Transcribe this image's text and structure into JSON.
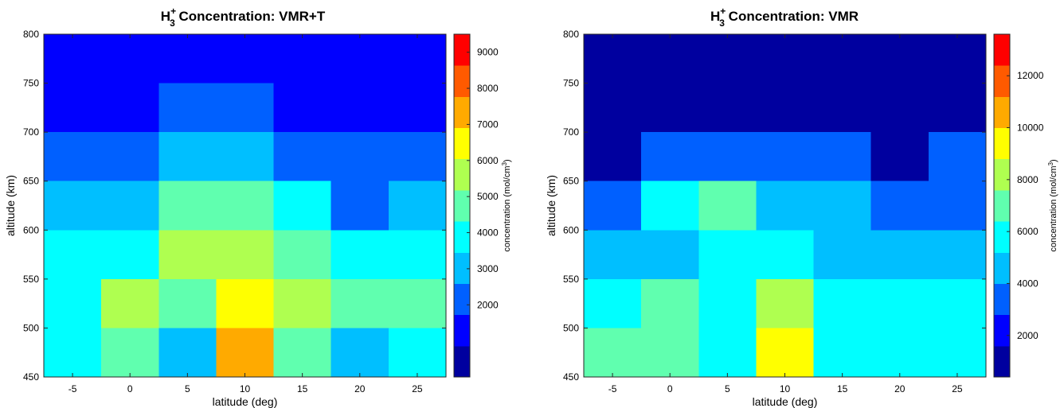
{
  "palette": [
    "#00009f",
    "#0000ff",
    "#0060ff",
    "#00bfff",
    "#00ffff",
    "#60ffaf",
    "#afff50",
    "#ffff00",
    "#ffaa00",
    "#ff5a00",
    "#ff0000"
  ],
  "chart_data": [
    {
      "type": "heatmap",
      "title_main": "H",
      "title_sup": "+",
      "title_sub": "3",
      "title_rest": " Concentration: VMR+T",
      "xlabel": "latitude (deg)",
      "ylabel": "altitude (km)",
      "colorbar_label": "concentration (mol/cm",
      "colorbar_label_sup": "3",
      "colorbar_label_end": ")",
      "x": [
        -5,
        0,
        5,
        10,
        15,
        20,
        25
      ],
      "x_tick_labels": [
        "-5",
        "0",
        "5",
        "10",
        "15",
        "20",
        "25"
      ],
      "xlim": [
        -7.5,
        27.5
      ],
      "ylim": [
        450,
        800
      ],
      "y_ticks": [
        450,
        500,
        550,
        600,
        650,
        700,
        750,
        800
      ],
      "y_tick_labels": [
        "450",
        "500",
        "550",
        "600",
        "650",
        "700",
        "750",
        "800"
      ],
      "clim": [
        0,
        9500
      ],
      "colorbar_ticks": [
        2000,
        3000,
        4000,
        5000,
        6000,
        7000,
        8000,
        9000
      ],
      "colorbar_tick_labels": [
        "2000",
        "3000",
        "4000",
        "5000",
        "6000",
        "7000",
        "8000",
        "9000"
      ],
      "cells": [
        {
          "x": -5,
          "y0": 450,
          "y1": 600,
          "value": 4300
        },
        {
          "x": -5,
          "y0": 600,
          "y1": 650,
          "value": 3300
        },
        {
          "x": -5,
          "y0": 650,
          "y1": 700,
          "value": 2400
        },
        {
          "x": -5,
          "y0": 700,
          "y1": 800,
          "value": 1200
        },
        {
          "x": 0,
          "y0": 450,
          "y1": 500,
          "value": 5100
        },
        {
          "x": 0,
          "y0": 500,
          "y1": 550,
          "value": 5700
        },
        {
          "x": 0,
          "y0": 550,
          "y1": 600,
          "value": 4300
        },
        {
          "x": 0,
          "y0": 600,
          "y1": 650,
          "value": 3300
        },
        {
          "x": 0,
          "y0": 650,
          "y1": 700,
          "value": 2400
        },
        {
          "x": 0,
          "y0": 700,
          "y1": 800,
          "value": 1200
        },
        {
          "x": 5,
          "y0": 450,
          "y1": 500,
          "value": 3300
        },
        {
          "x": 5,
          "y0": 500,
          "y1": 550,
          "value": 5100
        },
        {
          "x": 5,
          "y0": 550,
          "y1": 600,
          "value": 5700
        },
        {
          "x": 5,
          "y0": 600,
          "y1": 650,
          "value": 5100
        },
        {
          "x": 5,
          "y0": 650,
          "y1": 700,
          "value": 3300
        },
        {
          "x": 5,
          "y0": 700,
          "y1": 750,
          "value": 2400
        },
        {
          "x": 5,
          "y0": 750,
          "y1": 800,
          "value": 1200
        },
        {
          "x": 10,
          "y0": 450,
          "y1": 500,
          "value": 7400
        },
        {
          "x": 10,
          "y0": 500,
          "y1": 550,
          "value": 6600
        },
        {
          "x": 10,
          "y0": 550,
          "y1": 600,
          "value": 5700
        },
        {
          "x": 10,
          "y0": 600,
          "y1": 650,
          "value": 5100
        },
        {
          "x": 10,
          "y0": 650,
          "y1": 700,
          "value": 3300
        },
        {
          "x": 10,
          "y0": 700,
          "y1": 750,
          "value": 2400
        },
        {
          "x": 10,
          "y0": 750,
          "y1": 800,
          "value": 1200
        },
        {
          "x": 15,
          "y0": 450,
          "y1": 500,
          "value": 5100
        },
        {
          "x": 15,
          "y0": 500,
          "y1": 550,
          "value": 5700
        },
        {
          "x": 15,
          "y0": 550,
          "y1": 600,
          "value": 5100
        },
        {
          "x": 15,
          "y0": 600,
          "y1": 650,
          "value": 4300
        },
        {
          "x": 15,
          "y0": 650,
          "y1": 700,
          "value": 2400
        },
        {
          "x": 15,
          "y0": 700,
          "y1": 800,
          "value": 1200
        },
        {
          "x": 20,
          "y0": 450,
          "y1": 500,
          "value": 3300
        },
        {
          "x": 20,
          "y0": 500,
          "y1": 550,
          "value": 5100
        },
        {
          "x": 20,
          "y0": 550,
          "y1": 600,
          "value": 4300
        },
        {
          "x": 20,
          "y0": 600,
          "y1": 700,
          "value": 2400
        },
        {
          "x": 20,
          "y0": 700,
          "y1": 800,
          "value": 1200
        },
        {
          "x": 25,
          "y0": 450,
          "y1": 500,
          "value": 4300
        },
        {
          "x": 25,
          "y0": 500,
          "y1": 550,
          "value": 5100
        },
        {
          "x": 25,
          "y0": 550,
          "y1": 600,
          "value": 4300
        },
        {
          "x": 25,
          "y0": 600,
          "y1": 650,
          "value": 3300
        },
        {
          "x": 25,
          "y0": 650,
          "y1": 700,
          "value": 2400
        },
        {
          "x": 25,
          "y0": 700,
          "y1": 800,
          "value": 1200
        }
      ]
    },
    {
      "type": "heatmap",
      "title_main": "H",
      "title_sup": "+",
      "title_sub": "3",
      "title_rest": " Concentration: VMR",
      "xlabel": "latitude (deg)",
      "ylabel": "altitude (km)",
      "colorbar_label": "concentration (mol/cm",
      "colorbar_label_sup": "3",
      "colorbar_label_end": ")",
      "x": [
        -5,
        0,
        5,
        10,
        15,
        20,
        25
      ],
      "x_tick_labels": [
        "-5",
        "0",
        "5",
        "10",
        "15",
        "20",
        "25"
      ],
      "xlim": [
        -7.5,
        27.5
      ],
      "ylim": [
        450,
        800
      ],
      "y_ticks": [
        450,
        500,
        550,
        600,
        650,
        700,
        750,
        800
      ],
      "y_tick_labels": [
        "450",
        "500",
        "550",
        "600",
        "650",
        "700",
        "750",
        "800"
      ],
      "clim": [
        400,
        13600
      ],
      "colorbar_ticks": [
        2000,
        4000,
        6000,
        8000,
        10000,
        12000
      ],
      "colorbar_tick_labels": [
        "2000",
        "4000",
        "6000",
        "8000",
        "10000",
        "12000"
      ],
      "cells": [
        {
          "x": -5,
          "y0": 450,
          "y1": 500,
          "value": 6500
        },
        {
          "x": -5,
          "y0": 500,
          "y1": 550,
          "value": 5300
        },
        {
          "x": -5,
          "y0": 550,
          "y1": 600,
          "value": 4100
        },
        {
          "x": -5,
          "y0": 600,
          "y1": 650,
          "value": 2900
        },
        {
          "x": -5,
          "y0": 650,
          "y1": 800,
          "value": 1000
        },
        {
          "x": 0,
          "y0": 450,
          "y1": 550,
          "value": 6500
        },
        {
          "x": 0,
          "y0": 550,
          "y1": 600,
          "value": 4100
        },
        {
          "x": 0,
          "y0": 600,
          "y1": 650,
          "value": 5300
        },
        {
          "x": 0,
          "y0": 650,
          "y1": 700,
          "value": 2900
        },
        {
          "x": 0,
          "y0": 700,
          "y1": 800,
          "value": 1000
        },
        {
          "x": 5,
          "y0": 450,
          "y1": 600,
          "value": 5300
        },
        {
          "x": 5,
          "y0": 600,
          "y1": 650,
          "value": 6500
        },
        {
          "x": 5,
          "y0": 650,
          "y1": 700,
          "value": 2900
        },
        {
          "x": 5,
          "y0": 700,
          "y1": 800,
          "value": 1000
        },
        {
          "x": 10,
          "y0": 450,
          "y1": 500,
          "value": 8900
        },
        {
          "x": 10,
          "y0": 500,
          "y1": 550,
          "value": 7700
        },
        {
          "x": 10,
          "y0": 550,
          "y1": 600,
          "value": 5300
        },
        {
          "x": 10,
          "y0": 600,
          "y1": 650,
          "value": 4100
        },
        {
          "x": 10,
          "y0": 650,
          "y1": 700,
          "value": 2900
        },
        {
          "x": 10,
          "y0": 700,
          "y1": 800,
          "value": 1000
        },
        {
          "x": 15,
          "y0": 450,
          "y1": 550,
          "value": 5300
        },
        {
          "x": 15,
          "y0": 550,
          "y1": 600,
          "value": 4100
        },
        {
          "x": 15,
          "y0": 600,
          "y1": 650,
          "value": 4100
        },
        {
          "x": 15,
          "y0": 650,
          "y1": 700,
          "value": 2900
        },
        {
          "x": 15,
          "y0": 700,
          "y1": 800,
          "value": 1000
        },
        {
          "x": 20,
          "y0": 450,
          "y1": 550,
          "value": 5300
        },
        {
          "x": 20,
          "y0": 550,
          "y1": 600,
          "value": 4100
        },
        {
          "x": 20,
          "y0": 600,
          "y1": 650,
          "value": 2900
        },
        {
          "x": 20,
          "y0": 650,
          "y1": 800,
          "value": 1000
        },
        {
          "x": 25,
          "y0": 450,
          "y1": 550,
          "value": 5300
        },
        {
          "x": 25,
          "y0": 550,
          "y1": 600,
          "value": 4100
        },
        {
          "x": 25,
          "y0": 600,
          "y1": 650,
          "value": 2900
        },
        {
          "x": 25,
          "y0": 650,
          "y1": 700,
          "value": 2900
        },
        {
          "x": 25,
          "y0": 700,
          "y1": 800,
          "value": 1000
        }
      ]
    }
  ]
}
